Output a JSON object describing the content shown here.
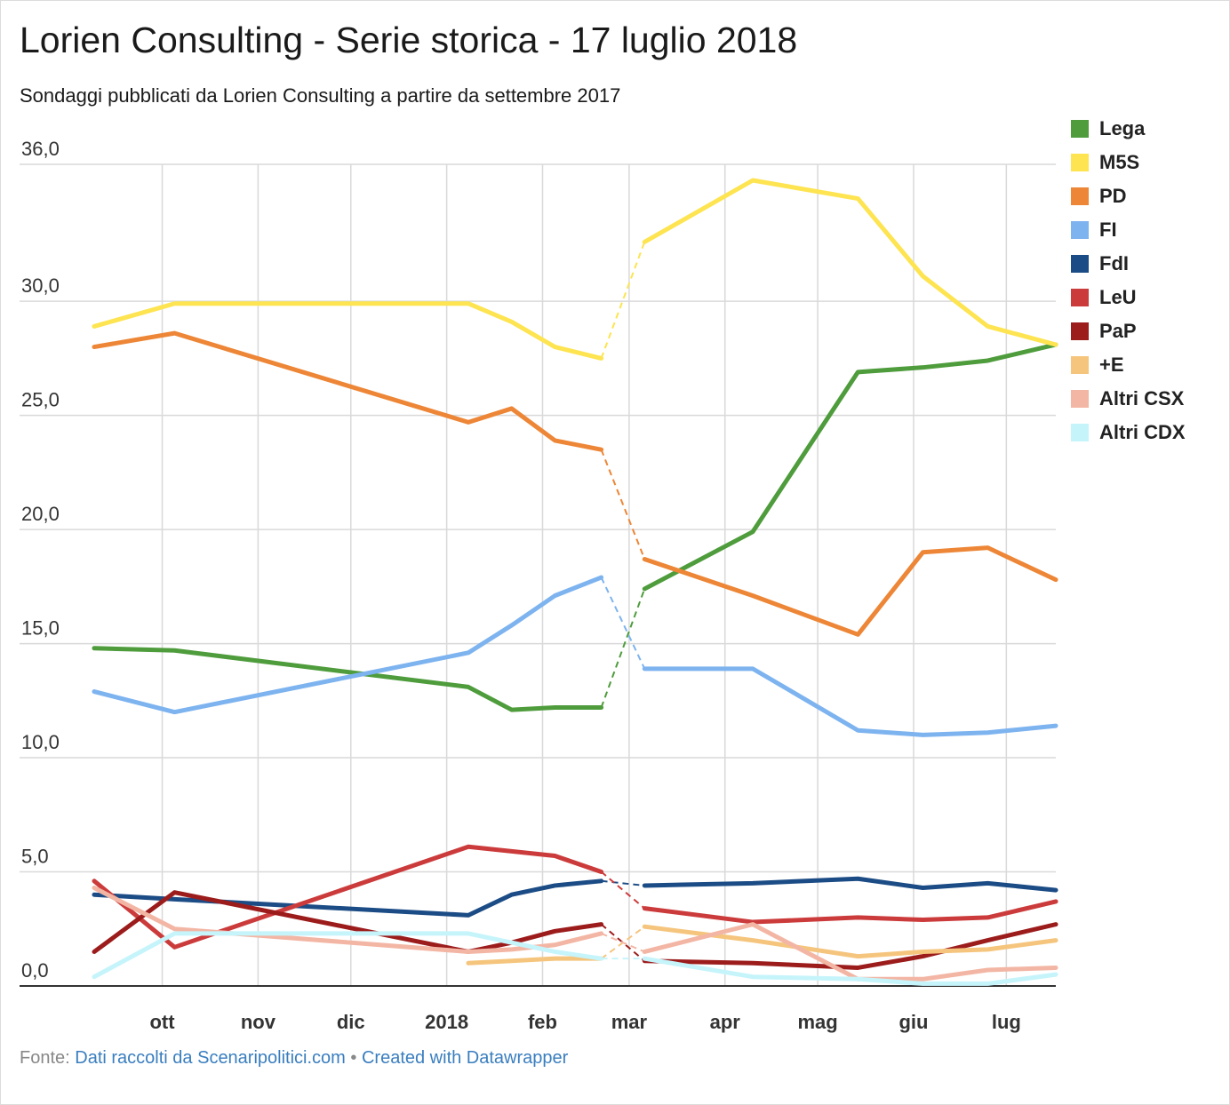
{
  "title": "Lorien Consulting - Serie storica - 17 luglio 2018",
  "subtitle": "Sondaggi pubblicati da Lorien Consulting a partire da settembre 2017",
  "footer": {
    "prefix": "Fonte:",
    "source_link": "Dati raccolti da Scenaripolitici.com",
    "separator": "•",
    "credit_link": "Created with Datawrapper"
  },
  "chart_data": {
    "type": "line",
    "ylim": [
      0,
      36
    ],
    "y_ticks": [
      0,
      5,
      10,
      15,
      20,
      25,
      30,
      36
    ],
    "y_tick_labels": [
      "0,0",
      "5,0",
      "10,0",
      "15,0",
      "20,0",
      "25,0",
      "30,0",
      "36,0"
    ],
    "x_tick_dates": [
      "2017-10-01",
      "2017-11-01",
      "2017-12-01",
      "2018-01-01",
      "2018-02-01",
      "2018-03-01",
      "2018-04-01",
      "2018-05-01",
      "2018-06-01",
      "2018-07-01"
    ],
    "x_tick_labels": [
      "ott",
      "nov",
      "dic",
      "2018",
      "feb",
      "mar",
      "apr",
      "mag",
      "giu",
      "lug"
    ],
    "x_range": [
      "2017-09-09",
      "2018-07-17"
    ],
    "grid": true,
    "legend_position": "right",
    "gap": [
      "2018-02-20",
      "2018-03-06"
    ],
    "series": [
      {
        "name": "Lega",
        "color": "#4e9c3c",
        "x": [
          "2017-09-09",
          "2017-10-05",
          "2018-01-08",
          "2018-01-22",
          "2018-02-05",
          "2018-02-20",
          "2018-03-06",
          "2018-04-10",
          "2018-05-14",
          "2018-06-04",
          "2018-06-25",
          "2018-07-17"
        ],
        "y": [
          14.8,
          14.7,
          13.1,
          12.1,
          12.2,
          12.2,
          17.4,
          19.9,
          26.9,
          27.1,
          27.4,
          28.1
        ]
      },
      {
        "name": "M5S",
        "color": "#fde450",
        "x": [
          "2017-09-09",
          "2017-10-05",
          "2018-01-08",
          "2018-01-22",
          "2018-02-05",
          "2018-02-20",
          "2018-03-06",
          "2018-04-10",
          "2018-05-14",
          "2018-06-04",
          "2018-06-25",
          "2018-07-17"
        ],
        "y": [
          28.9,
          29.9,
          29.9,
          29.1,
          28.0,
          27.5,
          32.6,
          35.3,
          34.5,
          31.1,
          28.9,
          28.1
        ]
      },
      {
        "name": "PD",
        "color": "#ed8636",
        "x": [
          "2017-09-09",
          "2017-10-05",
          "2018-01-08",
          "2018-01-22",
          "2018-02-05",
          "2018-02-20",
          "2018-03-06",
          "2018-04-10",
          "2018-05-14",
          "2018-06-04",
          "2018-06-25",
          "2018-07-17"
        ],
        "y": [
          28.0,
          28.6,
          24.7,
          25.3,
          23.9,
          23.5,
          18.7,
          17.1,
          15.4,
          19.0,
          19.2,
          17.8
        ]
      },
      {
        "name": "FI",
        "color": "#7db3ef",
        "x": [
          "2017-09-09",
          "2017-10-05",
          "2018-01-08",
          "2018-01-22",
          "2018-02-05",
          "2018-02-20",
          "2018-03-06",
          "2018-04-10",
          "2018-05-14",
          "2018-06-04",
          "2018-06-25",
          "2018-07-17"
        ],
        "y": [
          12.9,
          12.0,
          14.6,
          15.8,
          17.1,
          17.9,
          13.9,
          13.9,
          11.2,
          11.0,
          11.1,
          11.4
        ]
      },
      {
        "name": "FdI",
        "color": "#1c4c85",
        "x": [
          "2017-09-09",
          "2017-10-05",
          "2018-01-08",
          "2018-01-22",
          "2018-02-05",
          "2018-02-20",
          "2018-03-06",
          "2018-04-10",
          "2018-05-14",
          "2018-06-04",
          "2018-06-25",
          "2018-07-17"
        ],
        "y": [
          4.0,
          3.8,
          3.1,
          4.0,
          4.4,
          4.6,
          4.4,
          4.5,
          4.7,
          4.3,
          4.5,
          4.2
        ]
      },
      {
        "name": "LeU",
        "color": "#cc3b3b",
        "x": [
          "2017-09-09",
          "2017-10-05",
          "2018-01-08",
          "2018-01-22",
          "2018-02-05",
          "2018-02-20",
          "2018-03-06",
          "2018-04-10",
          "2018-05-14",
          "2018-06-04",
          "2018-06-25",
          "2018-07-17"
        ],
        "y": [
          4.6,
          1.7,
          6.1,
          5.9,
          5.7,
          5.0,
          3.4,
          2.8,
          3.0,
          2.9,
          3.0,
          3.7
        ]
      },
      {
        "name": "PaP",
        "color": "#9c1c1c",
        "x": [
          "2017-09-09",
          "2017-10-05",
          "2018-01-08",
          "2018-01-22",
          "2018-02-05",
          "2018-02-20",
          "2018-03-06",
          "2018-04-10",
          "2018-05-14",
          "2018-06-04",
          "2018-06-25",
          "2018-07-17"
        ],
        "y": [
          1.5,
          4.1,
          1.5,
          1.9,
          2.4,
          2.7,
          1.1,
          1.0,
          0.8,
          1.3,
          2.0,
          2.7
        ]
      },
      {
        "name": "+E",
        "color": "#f5c57d",
        "x": [
          "2018-01-08",
          "2018-01-22",
          "2018-02-05",
          "2018-02-20",
          "2018-03-06",
          "2018-04-10",
          "2018-05-14",
          "2018-06-04",
          "2018-06-25",
          "2018-07-17"
        ],
        "y": [
          1.0,
          1.1,
          1.2,
          1.2,
          2.6,
          2.0,
          1.3,
          1.5,
          1.6,
          2.0
        ],
        "gap_before": "2018-03-06"
      },
      {
        "name": "Altri CSX",
        "color": "#f3b6a4",
        "x": [
          "2017-09-09",
          "2017-10-05",
          "2018-01-08",
          "2018-01-22",
          "2018-02-05",
          "2018-02-20",
          "2018-03-06",
          "2018-04-10",
          "2018-05-14",
          "2018-06-04",
          "2018-06-25",
          "2018-07-17"
        ],
        "y": [
          4.3,
          2.5,
          1.5,
          1.6,
          1.8,
          2.3,
          1.5,
          2.7,
          0.3,
          0.3,
          0.7,
          0.8
        ]
      },
      {
        "name": "Altri CDX",
        "color": "#c6f4fb",
        "x": [
          "2017-09-09",
          "2017-10-05",
          "2018-01-08",
          "2018-01-22",
          "2018-02-05",
          "2018-02-20",
          "2018-03-06",
          "2018-04-10",
          "2018-05-14",
          "2018-06-04",
          "2018-06-25",
          "2018-07-17"
        ],
        "y": [
          0.4,
          2.3,
          2.3,
          1.9,
          1.5,
          1.2,
          1.2,
          0.4,
          0.3,
          0.1,
          0.1,
          0.5
        ]
      }
    ]
  }
}
